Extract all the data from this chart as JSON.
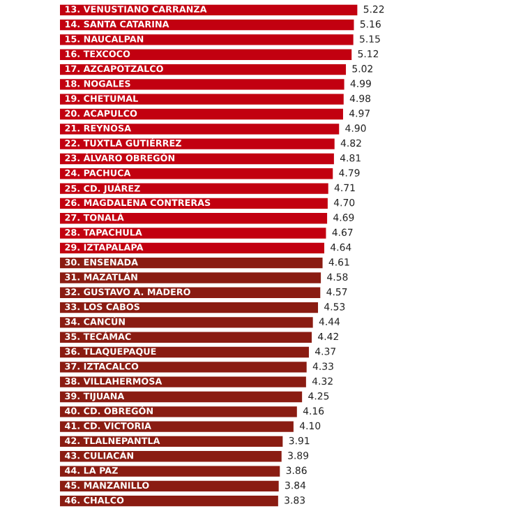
{
  "chart_data": {
    "type": "bar",
    "orientation": "horizontal",
    "data_labels": true,
    "categories": [
      "13. VENUSTIANO CARRANZA",
      "14. SANTA CATARINA",
      "15. NAUCALPAN",
      "16. TEXCOCO",
      "17. AZCAPOTZALCO",
      "18. NOGALES",
      "19. CHETUMAL",
      "20. ACAPULCO",
      "21. REYNOSA",
      "22. TUXTLA GUTIÉRREZ",
      "23. ÁLVARO OBREGÓN",
      "24. PACHUCA",
      "25. CD. JUÁREZ",
      "26. MAGDALENA CONTRERAS",
      "27. TONALÁ",
      "28. TAPACHULA",
      "29. IZTAPALAPA",
      "30. ENSENADA",
      "31. MAZATLÁN",
      "32. GUSTAVO A. MADERO",
      "33. LOS CABOS",
      "34. CANCÚN",
      "35. TECÁMAC",
      "36. TLAQUEPAQUE",
      "37. IZTACALCO",
      "38. VILLAHERMOSA",
      "39. TIJUANA",
      "40. CD. OBREGÓN",
      "41. CD. VICTORIA",
      "42. TLALNEPANTLA",
      "43. CULIACÁN",
      "44. LA PAZ",
      "45. MANZANILLO",
      "46. CHALCO"
    ],
    "values": [
      5.22,
      5.16,
      5.15,
      5.12,
      5.02,
      4.99,
      4.98,
      4.97,
      4.9,
      4.82,
      4.81,
      4.79,
      4.71,
      4.7,
      4.69,
      4.67,
      4.64,
      4.61,
      4.58,
      4.57,
      4.53,
      4.44,
      4.42,
      4.37,
      4.33,
      4.32,
      4.25,
      4.16,
      4.1,
      3.91,
      3.89,
      3.86,
      3.84,
      3.83
    ],
    "value_labels": [
      "5.22",
      "5.16",
      "5.15",
      "5.12",
      "5.02",
      "4.99",
      "4.98",
      "4.97",
      "4.90",
      "4.82",
      "4.81",
      "4.79",
      "4.71",
      "4.70",
      "4.69",
      "4.67",
      "4.64",
      "4.61",
      "4.58",
      "4.57",
      "4.53",
      "4.44",
      "4.42",
      "4.37",
      "4.33",
      "4.32",
      "4.25",
      "4.16",
      "4.10",
      "3.91",
      "3.89",
      "3.86",
      "3.84",
      "3.83"
    ],
    "colors": [
      "#c20010",
      "#c20010",
      "#c20010",
      "#c20010",
      "#c20010",
      "#c20010",
      "#c20010",
      "#c20010",
      "#c20010",
      "#c20010",
      "#c20010",
      "#c20010",
      "#c20010",
      "#c20010",
      "#c20010",
      "#c20010",
      "#c20010",
      "#8a1c12",
      "#8a1c12",
      "#8a1c12",
      "#8a1c12",
      "#8a1c12",
      "#8a1c12",
      "#8a1c12",
      "#8a1c12",
      "#8a1c12",
      "#8a1c12",
      "#8a1c12",
      "#8a1c12",
      "#8a1c12",
      "#8a1c12",
      "#8a1c12",
      "#8a1c12",
      "#8a1c12"
    ]
  }
}
